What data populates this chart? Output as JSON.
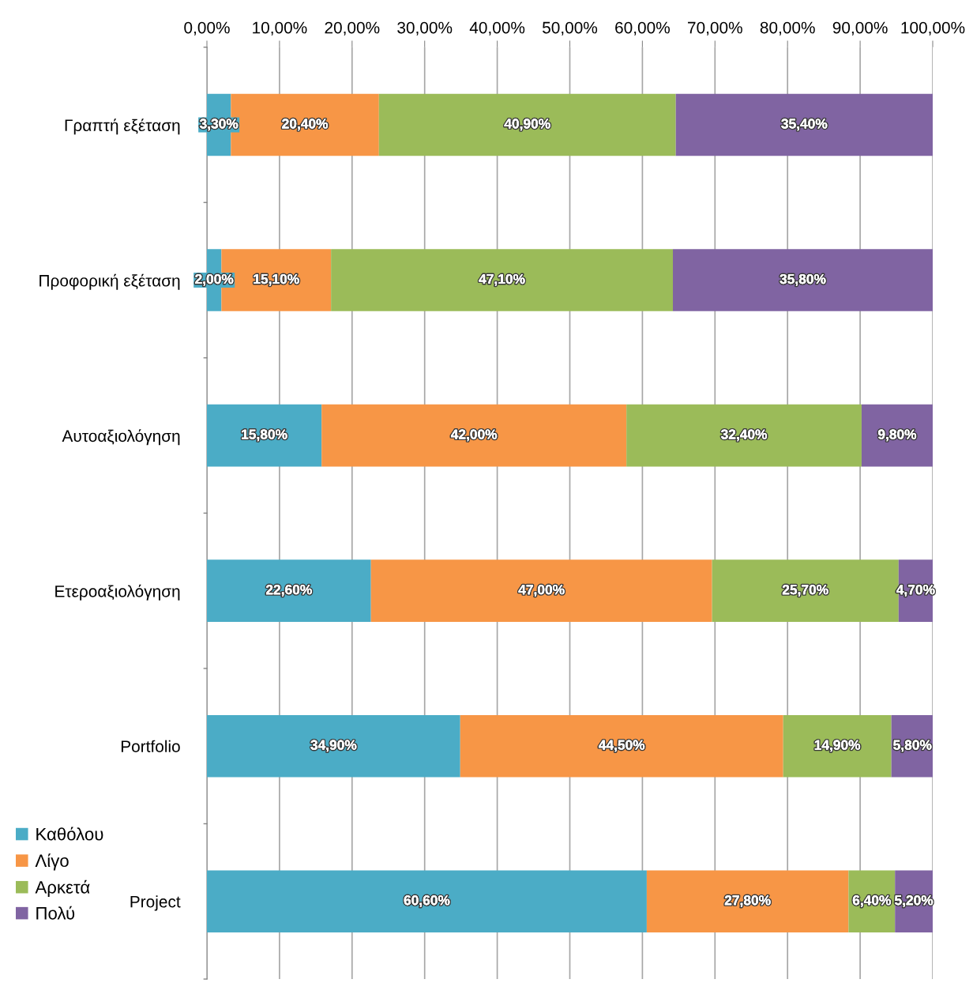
{
  "chart_data": {
    "type": "bar",
    "orientation": "horizontal",
    "stacked": true,
    "categories": [
      "Γραπτή εξέταση",
      "Προφορική εξέταση",
      "Αυτοαξιολόγηση",
      "Ετεροαξιολόγηση",
      "Portfolio",
      "Project"
    ],
    "series": [
      {
        "name": "Καθόλου",
        "color": "#4bacc6",
        "values": [
          3.3,
          2.0,
          15.8,
          22.6,
          34.9,
          60.6
        ],
        "value_labels": [
          "3,30%",
          "2,00%",
          "15,80%",
          "22,60%",
          "34,90%",
          "60,60%"
        ]
      },
      {
        "name": "Λίγο",
        "color": "#f79646",
        "values": [
          20.4,
          15.1,
          42.0,
          47.0,
          44.5,
          27.8
        ],
        "value_labels": [
          "20,40%",
          "15,10%",
          "42,00%",
          "47,00%",
          "44,50%",
          "27,80%"
        ]
      },
      {
        "name": "Αρκετά",
        "color": "#9bbb59",
        "values": [
          40.9,
          47.1,
          32.4,
          25.7,
          14.9,
          6.4
        ],
        "value_labels": [
          "40,90%",
          "47,10%",
          "32,40%",
          "25,70%",
          "14,90%",
          "6,40%"
        ]
      },
      {
        "name": "Πολύ",
        "color": "#8064a2",
        "values": [
          35.4,
          35.8,
          9.8,
          4.7,
          5.8,
          5.2
        ],
        "value_labels": [
          "35,40%",
          "35,80%",
          "9,80%",
          "4,70%",
          "5,80%",
          "5,20%"
        ]
      }
    ],
    "xlim": [
      0,
      100
    ],
    "xticks": [
      {
        "value": 0,
        "label": "0,00%"
      },
      {
        "value": 10,
        "label": "10,00%"
      },
      {
        "value": 20,
        "label": "20,00%"
      },
      {
        "value": 30,
        "label": "30,00%"
      },
      {
        "value": 40,
        "label": "40,00%"
      },
      {
        "value": 50,
        "label": "50,00%"
      },
      {
        "value": 60,
        "label": "60,00%"
      },
      {
        "value": 70,
        "label": "70,00%"
      },
      {
        "value": 80,
        "label": "80,00%"
      },
      {
        "value": 90,
        "label": "90,00%"
      },
      {
        "value": 100,
        "label": "100,00%"
      }
    ],
    "grid": "x",
    "legend": "bottom left"
  }
}
